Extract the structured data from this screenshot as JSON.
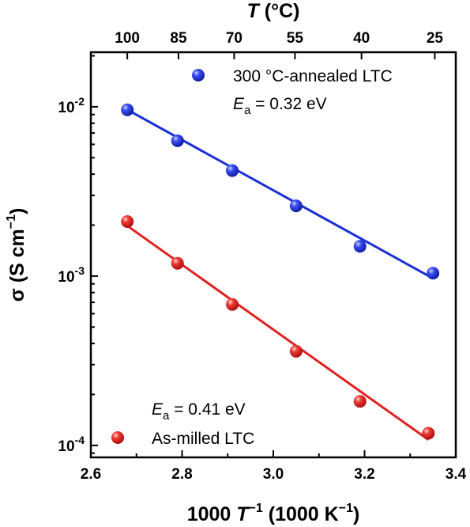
{
  "chart_data": {
    "type": "scatter",
    "x_axis": {
      "label_num": "1000",
      "label_T": "T",
      "label_exp": "−1",
      "label_unit": "(1000 K",
      "label_unit_exp": "−1",
      "label_close": ")",
      "range": [
        2.6,
        3.4
      ],
      "ticks": [
        2.6,
        2.8,
        3.0,
        3.2,
        3.4
      ],
      "tick_labels": [
        "2.6",
        "2.8",
        "3.0",
        "3.2",
        "3.4"
      ]
    },
    "top_axis": {
      "label_T": "T",
      "label_unit": "(°C)",
      "ticks_celsius": [
        100,
        85,
        70,
        55,
        40,
        25
      ],
      "tick_labels": [
        "100",
        "85",
        "70",
        "55",
        "40",
        "25"
      ]
    },
    "y_axis": {
      "scale": "log",
      "label_sigma": "σ",
      "label_unit": "(S cm",
      "label_exp": "−1",
      "label_close": ")",
      "range": [
        8.5e-05,
        0.021
      ],
      "ticks": [
        0.0001,
        0.001,
        0.01
      ],
      "tick_base": "10",
      "tick_exponents": [
        "-4",
        "-3",
        "-2"
      ]
    },
    "series": [
      {
        "name": "300 °C-annealed LTC",
        "color": "#1a2fd6",
        "x": [
          2.68,
          2.79,
          2.91,
          3.05,
          3.19,
          3.35
        ],
        "y": [
          0.0096,
          0.0063,
          0.0042,
          0.0026,
          0.0015,
          0.00104
        ],
        "fit": {
          "x": [
            2.68,
            3.35
          ],
          "y": [
            0.0096,
            0.00097
          ]
        },
        "activation_label": "E",
        "activation_sub": "a",
        "activation_value": " = 0.32 eV"
      },
      {
        "name": "As-milled LTC",
        "color": "#e0201f",
        "x": [
          2.68,
          2.79,
          2.91,
          3.05,
          3.19,
          3.34
        ],
        "y": [
          0.0021,
          0.00119,
          0.00068,
          0.00036,
          0.000182,
          0.000118
        ],
        "fit": {
          "x": [
            2.68,
            3.34
          ],
          "y": [
            0.00198,
            0.000108
          ]
        },
        "activation_label": "E",
        "activation_sub": "a",
        "activation_value": " = 0.41 eV"
      }
    ],
    "grid": false,
    "legend_placement": "top-right and bottom-left"
  }
}
